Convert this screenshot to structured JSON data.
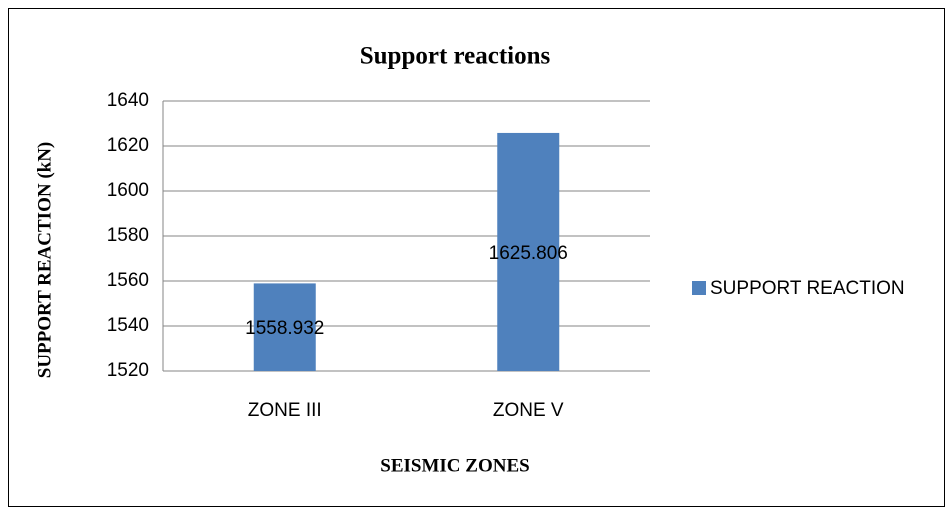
{
  "chart_data": {
    "type": "bar",
    "title": "Support reactions",
    "x_label": "SEISMIC ZONES",
    "y_label": "SUPPORT REACTION (kN)",
    "categories": [
      "ZONE III",
      "ZONE V"
    ],
    "series": [
      {
        "name": "SUPPORT REACTION",
        "color": "#4f81bd",
        "values": [
          1558.932,
          1625.806
        ]
      }
    ],
    "ylim": [
      1520,
      1640
    ],
    "yticks": [
      1520,
      1540,
      1560,
      1580,
      1600,
      1620,
      1640
    ],
    "grid": true,
    "legend": "right"
  }
}
